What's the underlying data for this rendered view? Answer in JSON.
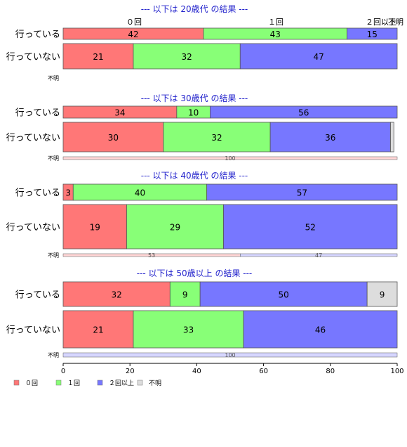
{
  "chart_data": {
    "type": "bar",
    "orientation": "horizontal",
    "stacked": true,
    "xlim": [
      0,
      100
    ],
    "x_ticks": [
      0,
      20,
      40,
      60,
      80,
      100
    ],
    "column_headers": [
      "０回",
      "１回",
      "２回以上",
      "不明"
    ],
    "legend": {
      "position": "bottom-left",
      "items": [
        {
          "label": "０回",
          "color": "#ff7777"
        },
        {
          "label": "１回",
          "color": "#88ff77"
        },
        {
          "label": "２回以上",
          "color": "#7777ff"
        },
        {
          "label": "不明",
          "color": "#dddddd"
        }
      ]
    },
    "panels": [
      {
        "title": "--- 以下は 20歳代 の結果 ---",
        "rows": [
          {
            "label": "行っている",
            "values": [
              42,
              43,
              15,
              0
            ]
          },
          {
            "label": "行っていない",
            "values": [
              21,
              32,
              47,
              0
            ]
          },
          {
            "label": "不明",
            "values": [
              0,
              0,
              0,
              0
            ]
          }
        ]
      },
      {
        "title": "--- 以下は 30歳代 の結果 ---",
        "rows": [
          {
            "label": "行っている",
            "values": [
              34,
              10,
              56,
              0
            ]
          },
          {
            "label": "行っていない",
            "values": [
              30,
              32,
              36,
              1
            ]
          },
          {
            "label": "不明",
            "values": [
              100,
              0,
              0,
              0
            ]
          }
        ]
      },
      {
        "title": "--- 以下は 40歳代 の結果 ---",
        "rows": [
          {
            "label": "行っている",
            "values": [
              3,
              40,
              57,
              0
            ]
          },
          {
            "label": "行っていない",
            "values": [
              19,
              29,
              52,
              0
            ]
          },
          {
            "label": "不明",
            "values": [
              53,
              0,
              47,
              0
            ]
          }
        ]
      },
      {
        "title": "--- 以下は 50歳以上 の結果 ---",
        "rows": [
          {
            "label": "行っている",
            "values": [
              32,
              9,
              50,
              9
            ]
          },
          {
            "label": "行っていない",
            "values": [
              21,
              33,
              46,
              0
            ]
          },
          {
            "label": "不明",
            "values": [
              0,
              0,
              100,
              0
            ]
          }
        ]
      }
    ]
  }
}
